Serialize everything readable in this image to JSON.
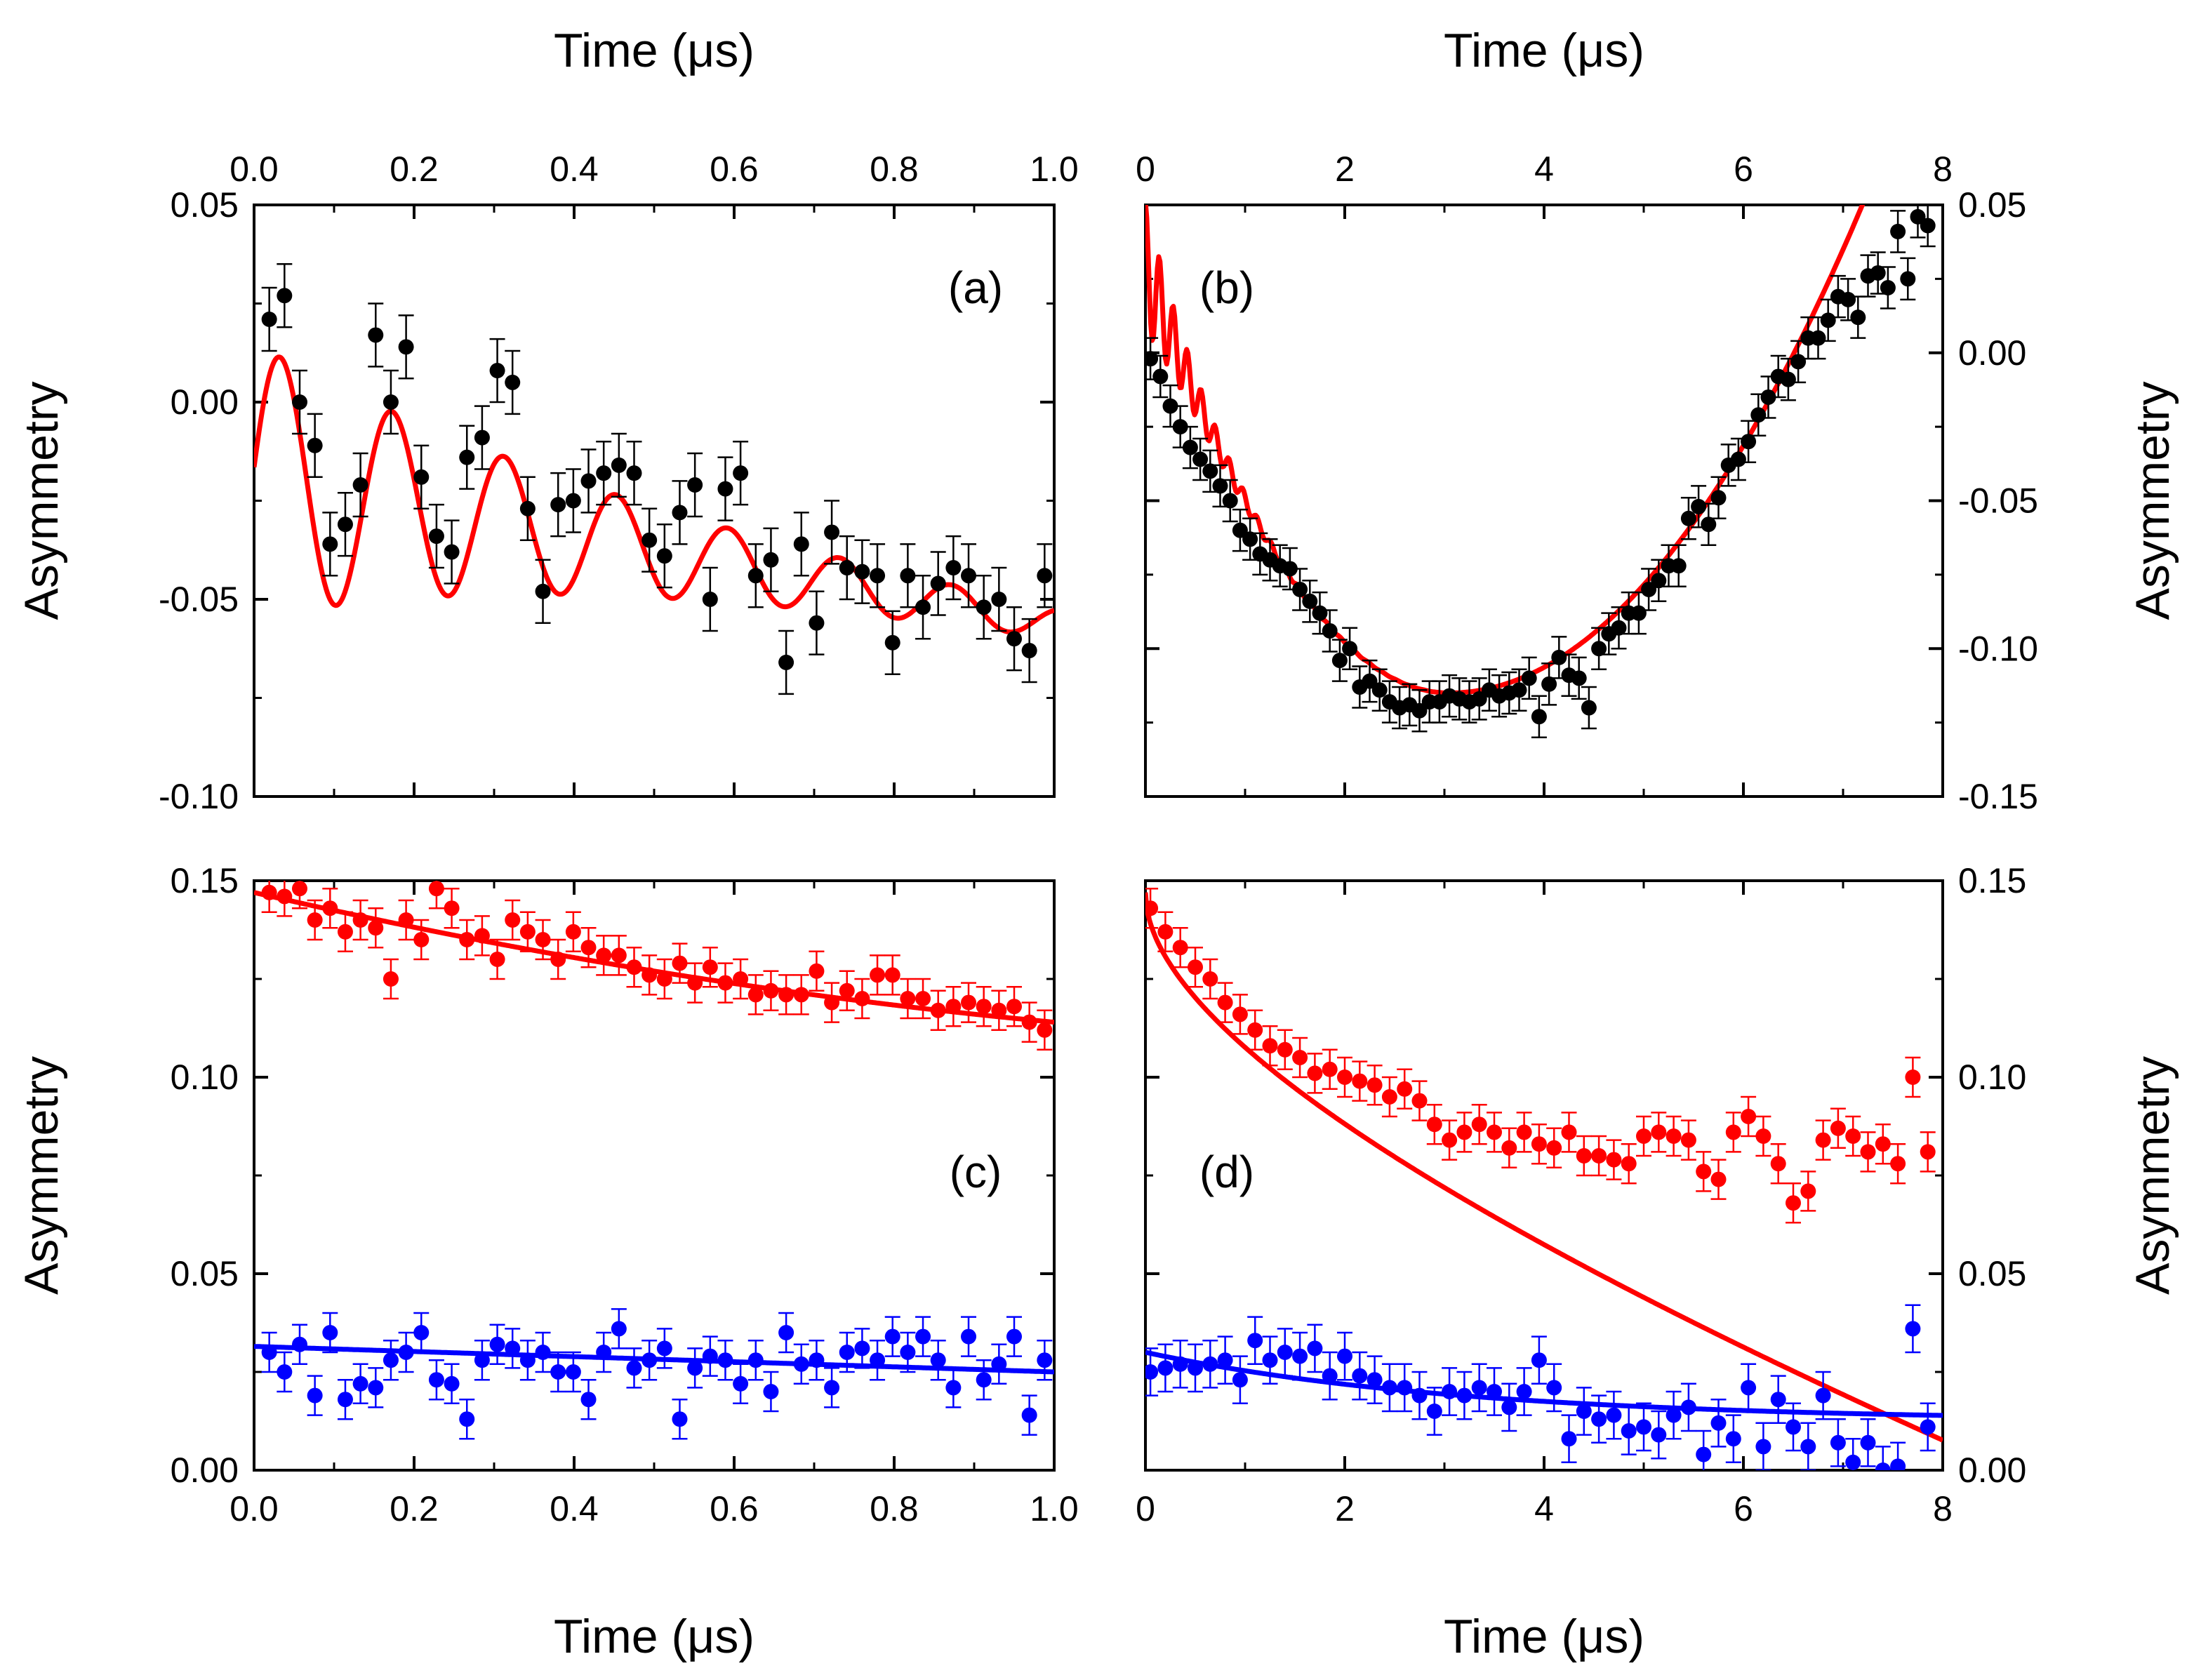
{
  "figure": {
    "description_note": "",
    "colors": {
      "black": "#000000",
      "red": "#ff0000",
      "blue": "#0000ff"
    }
  },
  "chart_data": [
    {
      "id": "a",
      "type": "scatter",
      "panel_label": "(a)",
      "xlabel": "Time (μs)",
      "ylabel": "Asymmetry",
      "xlim": [
        0.0,
        1.0
      ],
      "ylim": [
        -0.1,
        0.05
      ],
      "xticks": [
        "0.0",
        "0.2",
        "0.4",
        "0.6",
        "0.8",
        "1.0"
      ],
      "yticks": [
        "-0.10",
        "-0.05",
        "0.00",
        "0.05"
      ],
      "series": [
        {
          "name": "data",
          "color": "#000000",
          "x": [
            0.019,
            0.038,
            0.057,
            0.076,
            0.095,
            0.114,
            0.133,
            0.152,
            0.171,
            0.19,
            0.209,
            0.228,
            0.247,
            0.266,
            0.285,
            0.304,
            0.323,
            0.342,
            0.361,
            0.38,
            0.399,
            0.418,
            0.437,
            0.456,
            0.475,
            0.494,
            0.513,
            0.532,
            0.551,
            0.57,
            0.589,
            0.608,
            0.627,
            0.646,
            0.665,
            0.684,
            0.703,
            0.722,
            0.741,
            0.76,
            0.779,
            0.798,
            0.817,
            0.836,
            0.855,
            0.874,
            0.893,
            0.912,
            0.931,
            0.95,
            0.969,
            0.988
          ],
          "y": [
            0.021,
            0.027,
            0.0,
            -0.011,
            -0.036,
            -0.031,
            -0.021,
            0.017,
            0.0,
            0.014,
            -0.019,
            -0.034,
            -0.038,
            -0.014,
            -0.009,
            0.008,
            0.005,
            -0.027,
            -0.048,
            -0.026,
            -0.025,
            -0.02,
            -0.018,
            -0.016,
            -0.018,
            -0.035,
            -0.039,
            -0.028,
            -0.021,
            -0.05,
            -0.022,
            -0.018,
            -0.044,
            -0.04,
            -0.066,
            -0.036,
            -0.056,
            -0.033,
            -0.042,
            -0.043,
            -0.044,
            -0.061,
            -0.044,
            -0.052,
            -0.046,
            -0.042,
            -0.044,
            -0.052,
            -0.05,
            -0.06,
            -0.063,
            -0.044
          ],
          "err": 0.008
        },
        {
          "name": "fit",
          "type": "line",
          "color": "#ff0000",
          "model": "oscillating"
        }
      ]
    },
    {
      "id": "b",
      "type": "scatter",
      "panel_label": "(b)",
      "xlabel": "Time (μs)",
      "ylabel": "Asymmetry",
      "xlim": [
        0,
        8
      ],
      "ylim": [
        -0.15,
        0.05
      ],
      "xticks": [
        "0",
        "2",
        "4",
        "6",
        "8"
      ],
      "yticks": [
        "-0.15",
        "-0.10",
        "-0.05",
        "0.00",
        "0.05"
      ],
      "series": [
        {
          "name": "data",
          "color": "#000000",
          "x": [
            0.05,
            0.15,
            0.25,
            0.35,
            0.45,
            0.55,
            0.65,
            0.75,
            0.85,
            0.95,
            1.05,
            1.15,
            1.25,
            1.35,
            1.45,
            1.55,
            1.65,
            1.75,
            1.85,
            1.95,
            2.05,
            2.15,
            2.25,
            2.35,
            2.45,
            2.55,
            2.65,
            2.75,
            2.85,
            2.95,
            3.05,
            3.15,
            3.25,
            3.35,
            3.45,
            3.55,
            3.65,
            3.75,
            3.85,
            3.95,
            4.05,
            4.15,
            4.25,
            4.35,
            4.45,
            4.55,
            4.65,
            4.75,
            4.85,
            4.95,
            5.05,
            5.15,
            5.25,
            5.35,
            5.45,
            5.55,
            5.65,
            5.75,
            5.85,
            5.95,
            6.05,
            6.15,
            6.25,
            6.35,
            6.45,
            6.55,
            6.65,
            6.75,
            6.85,
            6.95,
            7.05,
            7.15,
            7.25,
            7.35,
            7.45,
            7.55,
            7.65,
            7.75,
            7.85
          ],
          "y": [
            -0.002,
            -0.008,
            -0.018,
            -0.025,
            -0.032,
            -0.036,
            -0.04,
            -0.045,
            -0.05,
            -0.06,
            -0.063,
            -0.068,
            -0.07,
            -0.072,
            -0.073,
            -0.08,
            -0.084,
            -0.088,
            -0.094,
            -0.104,
            -0.1,
            -0.113,
            -0.111,
            -0.114,
            -0.118,
            -0.12,
            -0.119,
            -0.121,
            -0.118,
            -0.118,
            -0.116,
            -0.117,
            -0.118,
            -0.117,
            -0.114,
            -0.116,
            -0.115,
            -0.114,
            -0.11,
            -0.123,
            -0.112,
            -0.103,
            -0.109,
            -0.11,
            -0.12,
            -0.1,
            -0.095,
            -0.093,
            -0.088,
            -0.088,
            -0.08,
            -0.077,
            -0.072,
            -0.072,
            -0.056,
            -0.052,
            -0.058,
            -0.049,
            -0.038,
            -0.036,
            -0.03,
            -0.021,
            -0.015,
            -0.008,
            -0.009,
            -0.003,
            0.005,
            0.005,
            0.011,
            0.019,
            0.018,
            0.012,
            0.026,
            0.027,
            0.022,
            0.041,
            0.025,
            0.046,
            0.043
          ],
          "err": 0.007
        },
        {
          "name": "fit",
          "type": "line",
          "color": "#ff0000",
          "model": "parabolic_osc"
        }
      ]
    },
    {
      "id": "c",
      "type": "scatter",
      "panel_label": "(c)",
      "xlabel": "Time (μs)",
      "ylabel": "Asymmetry",
      "xlim": [
        0.0,
        1.0
      ],
      "ylim": [
        0.0,
        0.15
      ],
      "xticks": [
        "0.0",
        "0.2",
        "0.4",
        "0.6",
        "0.8",
        "1.0"
      ],
      "yticks": [
        "0.00",
        "0.05",
        "0.10",
        "0.15"
      ],
      "series": [
        {
          "name": "red data",
          "color": "#ff0000",
          "x": [
            0.019,
            0.038,
            0.057,
            0.076,
            0.095,
            0.114,
            0.133,
            0.152,
            0.171,
            0.19,
            0.209,
            0.228,
            0.247,
            0.266,
            0.285,
            0.304,
            0.323,
            0.342,
            0.361,
            0.38,
            0.399,
            0.418,
            0.437,
            0.456,
            0.475,
            0.494,
            0.513,
            0.532,
            0.551,
            0.57,
            0.589,
            0.608,
            0.627,
            0.646,
            0.665,
            0.684,
            0.703,
            0.722,
            0.741,
            0.76,
            0.779,
            0.798,
            0.817,
            0.836,
            0.855,
            0.874,
            0.893,
            0.912,
            0.931,
            0.95,
            0.969,
            0.988
          ],
          "y": [
            0.147,
            0.146,
            0.148,
            0.14,
            0.143,
            0.137,
            0.14,
            0.138,
            0.125,
            0.14,
            0.135,
            0.148,
            0.143,
            0.135,
            0.136,
            0.13,
            0.14,
            0.137,
            0.135,
            0.13,
            0.137,
            0.133,
            0.131,
            0.131,
            0.128,
            0.126,
            0.125,
            0.129,
            0.124,
            0.128,
            0.124,
            0.125,
            0.121,
            0.122,
            0.121,
            0.121,
            0.127,
            0.119,
            0.122,
            0.12,
            0.126,
            0.126,
            0.12,
            0.12,
            0.117,
            0.118,
            0.119,
            0.118,
            0.117,
            0.118,
            0.114,
            0.112
          ],
          "err": 0.005
        },
        {
          "name": "blue data",
          "color": "#0000ff",
          "x": [
            0.019,
            0.038,
            0.057,
            0.076,
            0.095,
            0.114,
            0.133,
            0.152,
            0.171,
            0.19,
            0.209,
            0.228,
            0.247,
            0.266,
            0.285,
            0.304,
            0.323,
            0.342,
            0.361,
            0.38,
            0.399,
            0.418,
            0.437,
            0.456,
            0.475,
            0.494,
            0.513,
            0.532,
            0.551,
            0.57,
            0.589,
            0.608,
            0.627,
            0.646,
            0.665,
            0.684,
            0.703,
            0.722,
            0.741,
            0.76,
            0.779,
            0.798,
            0.817,
            0.836,
            0.855,
            0.874,
            0.893,
            0.912,
            0.931,
            0.95,
            0.969,
            0.988
          ],
          "y": [
            0.03,
            0.025,
            0.032,
            0.019,
            0.035,
            0.018,
            0.022,
            0.021,
            0.028,
            0.03,
            0.035,
            0.023,
            0.022,
            0.013,
            0.028,
            0.032,
            0.031,
            0.028,
            0.03,
            0.025,
            0.025,
            0.018,
            0.03,
            0.036,
            0.026,
            0.028,
            0.031,
            0.013,
            0.026,
            0.029,
            0.028,
            0.022,
            0.028,
            0.02,
            0.035,
            0.027,
            0.028,
            0.021,
            0.03,
            0.031,
            0.028,
            0.034,
            0.03,
            0.034,
            0.028,
            0.021,
            0.034,
            0.023,
            0.027,
            0.034,
            0.014,
            0.028
          ],
          "err": 0.005
        },
        {
          "name": "red fit",
          "type": "line",
          "color": "#ff0000",
          "model": "red_c"
        },
        {
          "name": "blue fit",
          "type": "line",
          "color": "#0000ff",
          "model": "blue_c"
        }
      ]
    },
    {
      "id": "d",
      "type": "scatter",
      "panel_label": "(d)",
      "xlabel": "Time (μs)",
      "ylabel": "Asymmetry",
      "xlim": [
        0,
        8
      ],
      "ylim": [
        0.0,
        0.15
      ],
      "xticks": [
        "0",
        "2",
        "4",
        "6",
        "8"
      ],
      "yticks": [
        "0.00",
        "0.05",
        "0.10",
        "0.15"
      ],
      "series": [
        {
          "name": "red data",
          "color": "#ff0000",
          "x": [
            0.05,
            0.2,
            0.35,
            0.5,
            0.65,
            0.8,
            0.95,
            1.1,
            1.25,
            1.4,
            1.55,
            1.7,
            1.85,
            2.0,
            2.15,
            2.3,
            2.45,
            2.6,
            2.75,
            2.9,
            3.05,
            3.2,
            3.35,
            3.5,
            3.65,
            3.8,
            3.95,
            4.1,
            4.25,
            4.4,
            4.55,
            4.7,
            4.85,
            5.0,
            5.15,
            5.3,
            5.45,
            5.6,
            5.75,
            5.9,
            6.05,
            6.2,
            6.35,
            6.5,
            6.65,
            6.8,
            6.95,
            7.1,
            7.25,
            7.4,
            7.55,
            7.7,
            7.85
          ],
          "y": [
            0.143,
            0.137,
            0.133,
            0.128,
            0.125,
            0.119,
            0.116,
            0.112,
            0.108,
            0.107,
            0.105,
            0.101,
            0.102,
            0.1,
            0.099,
            0.098,
            0.095,
            0.097,
            0.094,
            0.088,
            0.084,
            0.086,
            0.088,
            0.086,
            0.082,
            0.086,
            0.083,
            0.082,
            0.086,
            0.08,
            0.08,
            0.079,
            0.078,
            0.085,
            0.086,
            0.085,
            0.084,
            0.076,
            0.074,
            0.086,
            0.09,
            0.085,
            0.078,
            0.068,
            0.071,
            0.084,
            0.087,
            0.085,
            0.081,
            0.083,
            0.078,
            0.1,
            0.081
          ],
          "err": 0.005
        },
        {
          "name": "blue data",
          "color": "#0000ff",
          "x": [
            0.05,
            0.2,
            0.35,
            0.5,
            0.65,
            0.8,
            0.95,
            1.1,
            1.25,
            1.4,
            1.55,
            1.7,
            1.85,
            2.0,
            2.15,
            2.3,
            2.45,
            2.6,
            2.75,
            2.9,
            3.05,
            3.2,
            3.35,
            3.5,
            3.65,
            3.8,
            3.95,
            4.1,
            4.25,
            4.4,
            4.55,
            4.7,
            4.85,
            5.0,
            5.15,
            5.3,
            5.45,
            5.6,
            5.75,
            5.9,
            6.05,
            6.2,
            6.35,
            6.5,
            6.65,
            6.8,
            6.95,
            7.1,
            7.25,
            7.4,
            7.55,
            7.7,
            7.85
          ],
          "y": [
            0.025,
            0.026,
            0.027,
            0.026,
            0.027,
            0.028,
            0.023,
            0.033,
            0.028,
            0.03,
            0.029,
            0.031,
            0.024,
            0.029,
            0.024,
            0.023,
            0.021,
            0.021,
            0.019,
            0.015,
            0.02,
            0.019,
            0.021,
            0.02,
            0.016,
            0.02,
            0.028,
            0.021,
            0.008,
            0.015,
            0.013,
            0.014,
            0.01,
            0.011,
            0.009,
            0.014,
            0.016,
            0.004,
            0.012,
            0.008,
            0.021,
            0.006,
            0.018,
            0.011,
            0.006,
            0.019,
            0.007,
            0.002,
            0.007,
            0.0,
            0.001,
            0.036,
            0.011
          ],
          "err": 0.006
        },
        {
          "name": "red fit",
          "type": "line",
          "color": "#ff0000",
          "model": "red_d"
        },
        {
          "name": "blue fit",
          "type": "line",
          "color": "#0000ff",
          "model": "blue_d"
        }
      ]
    }
  ]
}
